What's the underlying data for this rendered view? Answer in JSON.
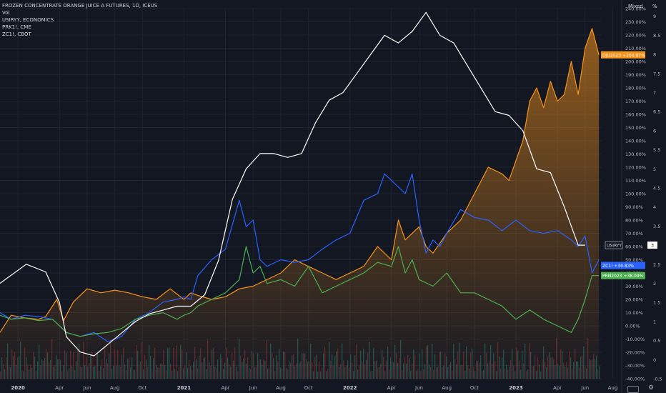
{
  "legend": {
    "main": "FROZEN CONCENTRATE ORANGE JUICE A FUTURES, 1D, ICEUS",
    "vol": "Vol",
    "s2": "USIRYY, ECONOMICS",
    "s3": "PRK1!, CME",
    "s4": "ZC1!, CBOT"
  },
  "header": {
    "mode": "Mixed",
    "unit": "%"
  },
  "icons": [
    "settings-gear-icon",
    "timezone-icon"
  ],
  "chart_data": {
    "type": "line",
    "x_ticks": [
      "2020",
      "Apr",
      "Jun",
      "Aug",
      "Oct",
      "2021",
      "Apr",
      "Jun",
      "Aug",
      "Oct",
      "2022",
      "Apr",
      "Jun",
      "Aug",
      "Oct",
      "2023",
      "Apr",
      "Jun",
      "Aug"
    ],
    "x_tick_t": [
      0,
      3,
      5,
      7,
      9,
      12,
      15,
      17,
      19,
      21,
      24,
      27,
      29,
      31,
      33,
      36,
      39,
      41,
      43
    ],
    "t_range": [
      -1.3,
      42.2
    ],
    "pct_axis": {
      "range": [
        -40,
        240
      ],
      "step": 10
    },
    "right_axis": {
      "range": [
        -0.5,
        9.2
      ],
      "ticks": [
        -0.5,
        0,
        0.5,
        1,
        1.5,
        2,
        2.5,
        3,
        3.5,
        4,
        4.5,
        5,
        5.5,
        6,
        6.5,
        7,
        7.5,
        8,
        8.5,
        9
      ]
    },
    "grid": true,
    "series": [
      {
        "name": "OJU2023",
        "color": "#f7931a",
        "fill": true,
        "points": [
          [
            -1.3,
            -5
          ],
          [
            -0.5,
            8
          ],
          [
            0.5,
            6
          ],
          [
            1.5,
            5
          ],
          [
            2,
            7
          ],
          [
            2.8,
            20
          ],
          [
            3.3,
            4
          ],
          [
            4,
            18
          ],
          [
            5,
            28
          ],
          [
            6,
            25
          ],
          [
            7,
            27
          ],
          [
            8,
            25
          ],
          [
            9,
            22
          ],
          [
            10,
            20
          ],
          [
            11,
            28
          ],
          [
            12,
            20
          ],
          [
            12.5,
            25
          ],
          [
            13,
            23
          ],
          [
            14,
            20
          ],
          [
            15,
            22
          ],
          [
            16,
            28
          ],
          [
            17,
            30
          ],
          [
            18,
            35
          ],
          [
            19,
            40
          ],
          [
            20,
            50
          ],
          [
            21,
            45
          ],
          [
            22,
            40
          ],
          [
            23,
            35
          ],
          [
            24,
            40
          ],
          [
            25,
            45
          ],
          [
            26,
            60
          ],
          [
            27,
            50
          ],
          [
            27.5,
            80
          ],
          [
            28,
            65
          ],
          [
            29,
            75
          ],
          [
            29.5,
            60
          ],
          [
            30,
            55
          ],
          [
            31,
            70
          ],
          [
            32,
            80
          ],
          [
            33,
            100
          ],
          [
            34,
            120
          ],
          [
            35,
            115
          ],
          [
            35.5,
            110
          ],
          [
            36,
            125
          ],
          [
            36.5,
            140
          ],
          [
            37,
            170
          ],
          [
            37.5,
            180
          ],
          [
            38,
            165
          ],
          [
            38.5,
            185
          ],
          [
            39,
            170
          ],
          [
            39.5,
            175
          ],
          [
            40,
            200
          ],
          [
            40.5,
            175
          ],
          [
            41,
            210
          ],
          [
            41.5,
            225
          ],
          [
            42,
            205
          ]
        ],
        "end_label": "OJU2023 +204.87%"
      },
      {
        "name": "ZC1!",
        "color": "#2962ff",
        "points": [
          [
            -1.3,
            10
          ],
          [
            -0.5,
            5
          ],
          [
            0.5,
            8
          ],
          [
            1.5,
            7
          ],
          [
            2.5,
            5
          ],
          [
            3.5,
            -5
          ],
          [
            4.5,
            -8
          ],
          [
            5.5,
            -5
          ],
          [
            6.5,
            -12
          ],
          [
            7.5,
            -8
          ],
          [
            8.5,
            5
          ],
          [
            9.5,
            10
          ],
          [
            10.5,
            18
          ],
          [
            11.5,
            20
          ],
          [
            12,
            22
          ],
          [
            12.5,
            20
          ],
          [
            13,
            38
          ],
          [
            14,
            50
          ],
          [
            15,
            58
          ],
          [
            16,
            95
          ],
          [
            16.5,
            75
          ],
          [
            17,
            80
          ],
          [
            17.5,
            50
          ],
          [
            18,
            45
          ],
          [
            19,
            50
          ],
          [
            20,
            48
          ],
          [
            21,
            50
          ],
          [
            22,
            58
          ],
          [
            23,
            65
          ],
          [
            24,
            70
          ],
          [
            25,
            95
          ],
          [
            26,
            100
          ],
          [
            26.5,
            115
          ],
          [
            27,
            110
          ],
          [
            28,
            100
          ],
          [
            28.5,
            115
          ],
          [
            29,
            80
          ],
          [
            29.5,
            55
          ],
          [
            30,
            65
          ],
          [
            30.5,
            60
          ],
          [
            31,
            70
          ],
          [
            32,
            88
          ],
          [
            33,
            82
          ],
          [
            34,
            80
          ],
          [
            35,
            72
          ],
          [
            36,
            80
          ],
          [
            37,
            72
          ],
          [
            38,
            70
          ],
          [
            39,
            72
          ],
          [
            40,
            65
          ],
          [
            40.5,
            60
          ],
          [
            41,
            68
          ],
          [
            41.5,
            40
          ],
          [
            42,
            50
          ]
        ],
        "end_label": "ZC1! +30.83%"
      },
      {
        "name": "PRN2023",
        "color": "#4caf50",
        "points": [
          [
            -1.3,
            8
          ],
          [
            -0.5,
            5
          ],
          [
            0.5,
            6
          ],
          [
            1.5,
            4
          ],
          [
            2.5,
            5
          ],
          [
            3.5,
            -5
          ],
          [
            4.5,
            -8
          ],
          [
            5.5,
            -6
          ],
          [
            6.5,
            -5
          ],
          [
            7.5,
            -2
          ],
          [
            8.5,
            5
          ],
          [
            9.5,
            8
          ],
          [
            10.5,
            10
          ],
          [
            11.5,
            5
          ],
          [
            12,
            8
          ],
          [
            12.5,
            10
          ],
          [
            13,
            15
          ],
          [
            14,
            20
          ],
          [
            15,
            25
          ],
          [
            16,
            35
          ],
          [
            16.5,
            60
          ],
          [
            17,
            40
          ],
          [
            17.5,
            45
          ],
          [
            18,
            32
          ],
          [
            19,
            35
          ],
          [
            20,
            30
          ],
          [
            21,
            45
          ],
          [
            22,
            25
          ],
          [
            23,
            30
          ],
          [
            24,
            35
          ],
          [
            25,
            40
          ],
          [
            26,
            48
          ],
          [
            27,
            45
          ],
          [
            27.5,
            60
          ],
          [
            28,
            40
          ],
          [
            28.5,
            50
          ],
          [
            29,
            35
          ],
          [
            30,
            30
          ],
          [
            31,
            40
          ],
          [
            32,
            25
          ],
          [
            33,
            25
          ],
          [
            34,
            20
          ],
          [
            35,
            15
          ],
          [
            36,
            5
          ],
          [
            37,
            12
          ],
          [
            38,
            5
          ],
          [
            39,
            0
          ],
          [
            40,
            -5
          ],
          [
            40.5,
            5
          ],
          [
            41,
            20
          ],
          [
            41.5,
            38
          ],
          [
            42,
            38
          ]
        ],
        "end_label": "PRN2023 +38.09%"
      },
      {
        "name": "USIRYY",
        "color": "#ffffff",
        "axis": "right",
        "points": [
          [
            -1.3,
            2
          ],
          [
            0.6,
            2.5
          ],
          [
            2,
            2.3
          ],
          [
            3,
            1.5
          ],
          [
            3.5,
            0.6
          ],
          [
            4.5,
            0.2
          ],
          [
            5.5,
            0.1
          ],
          [
            6.5,
            0.4
          ],
          [
            7.5,
            0.7
          ],
          [
            8.5,
            1
          ],
          [
            9.5,
            1.2
          ],
          [
            10.5,
            1.3
          ],
          [
            11.5,
            1.4
          ],
          [
            12.5,
            1.4
          ],
          [
            13.5,
            1.7
          ],
          [
            14.5,
            2.6
          ],
          [
            15.5,
            4.2
          ],
          [
            16.5,
            5
          ],
          [
            17.5,
            5.4
          ],
          [
            18.5,
            5.4
          ],
          [
            19.5,
            5.3
          ],
          [
            20.5,
            5.4
          ],
          [
            21.5,
            6.2
          ],
          [
            22.5,
            6.8
          ],
          [
            23.5,
            7
          ],
          [
            24.5,
            7.5
          ],
          [
            25.5,
            8
          ],
          [
            26.5,
            8.5
          ],
          [
            27.5,
            8.3
          ],
          [
            28.5,
            8.6
          ],
          [
            29.5,
            9.1
          ],
          [
            30.5,
            8.5
          ],
          [
            31.5,
            8.3
          ],
          [
            32.5,
            7.7
          ],
          [
            33.5,
            7.1
          ],
          [
            34.5,
            6.5
          ],
          [
            35.5,
            6.4
          ],
          [
            36.5,
            6
          ],
          [
            37.5,
            5
          ],
          [
            38.5,
            4.9
          ],
          [
            39.5,
            4
          ],
          [
            40.5,
            3
          ],
          [
            41,
            3
          ]
        ],
        "end_label": "USIRYY"
      }
    ],
    "usiryy_axis_label": "3"
  }
}
